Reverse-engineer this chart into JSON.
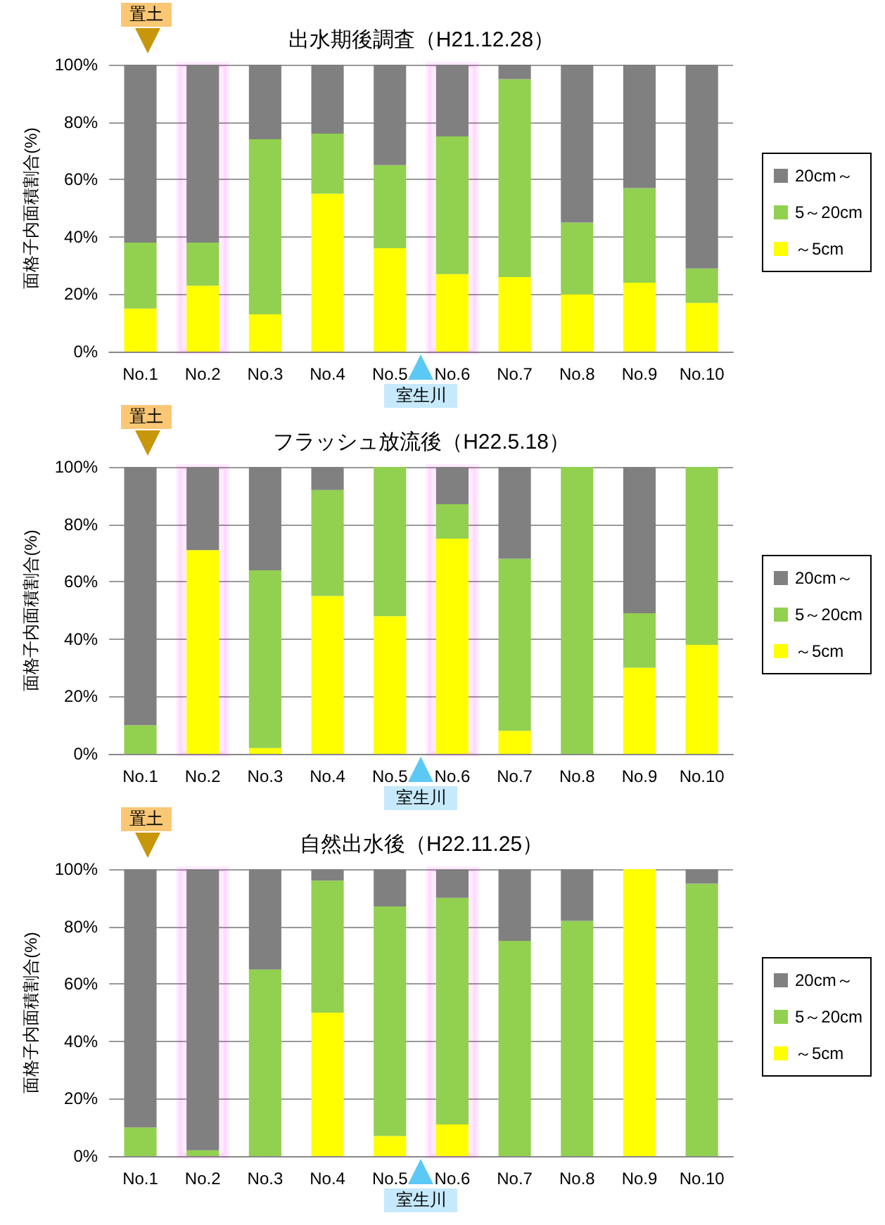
{
  "chart_data": [
    {
      "type": "bar",
      "title": "出水期後調査（H21.12.28）",
      "ylabel": "面格子内面積割合(%)",
      "categories": [
        "No.1",
        "No.2",
        "No.3",
        "No.4",
        "No.5",
        "No.6",
        "No.7",
        "No.8",
        "No.9",
        "No.10"
      ],
      "stacked": true,
      "series": [
        {
          "name": "～5cm",
          "color": "#ffff00",
          "values": [
            15,
            23,
            13,
            55,
            36,
            27,
            26,
            20,
            24,
            17
          ]
        },
        {
          "name": "5～20cm",
          "color": "#92d050",
          "values": [
            23,
            15,
            61,
            21,
            29,
            48,
            69,
            25,
            33,
            12
          ]
        },
        {
          "name": "20cm～",
          "color": "#808080",
          "values": [
            62,
            62,
            26,
            24,
            35,
            25,
            5,
            55,
            43,
            71
          ]
        }
      ],
      "ylim": [
        0,
        100
      ],
      "yticks": [
        {
          "value": 0,
          "label": "0%"
        },
        {
          "value": 20,
          "label": "20%"
        },
        {
          "value": 40,
          "label": "40%"
        },
        {
          "value": 60,
          "label": "60%"
        },
        {
          "value": 80,
          "label": "80%"
        },
        {
          "value": 100,
          "label": "100%"
        }
      ],
      "grid": "y",
      "legend": "right",
      "annotations": [
        "置土",
        "室生川"
      ],
      "bands": [
        {
          "axis": "x",
          "from": "No.2",
          "to": "No.2",
          "color": "#ff00ff"
        },
        {
          "axis": "x",
          "from": "No.6",
          "to": "No.6",
          "color": "#ff00ff"
        }
      ]
    },
    {
      "type": "bar",
      "title": "フラッシュ放流後（H22.5.18）",
      "ylabel": "面格子内面積割合(%)",
      "categories": [
        "No.1",
        "No.2",
        "No.3",
        "No.4",
        "No.5",
        "No.6",
        "No.7",
        "No.8",
        "No.9",
        "No.10"
      ],
      "stacked": true,
      "series": [
        {
          "name": "～5cm",
          "color": "#ffff00",
          "values": [
            0,
            71,
            2,
            55,
            48,
            75,
            8,
            0,
            30,
            38
          ]
        },
        {
          "name": "5～20cm",
          "color": "#92d050",
          "values": [
            10,
            0,
            62,
            37,
            52,
            12,
            60,
            100,
            19,
            62
          ]
        },
        {
          "name": "20cm～",
          "color": "#808080",
          "values": [
            90,
            29,
            36,
            8,
            0,
            13,
            32,
            0,
            51,
            0
          ]
        }
      ],
      "ylim": [
        0,
        100
      ],
      "yticks": [
        {
          "value": 0,
          "label": "0%"
        },
        {
          "value": 20,
          "label": "20%"
        },
        {
          "value": 40,
          "label": "40%"
        },
        {
          "value": 60,
          "label": "60%"
        },
        {
          "value": 80,
          "label": "80%"
        },
        {
          "value": 100,
          "label": "100%"
        }
      ],
      "grid": "y",
      "legend": "right",
      "annotations": [
        "置土",
        "室生川"
      ],
      "bands": [
        {
          "axis": "x",
          "from": "No.2",
          "to": "No.2",
          "color": "#ff00ff"
        },
        {
          "axis": "x",
          "from": "No.6",
          "to": "No.6",
          "color": "#ff00ff"
        }
      ]
    },
    {
      "type": "bar",
      "title": "自然出水後（H22.11.25）",
      "ylabel": "面格子内面積割合(%)",
      "categories": [
        "No.1",
        "No.2",
        "No.3",
        "No.4",
        "No.5",
        "No.6",
        "No.7",
        "No.8",
        "No.9",
        "No.10"
      ],
      "stacked": true,
      "series": [
        {
          "name": "～5cm",
          "color": "#ffff00",
          "values": [
            0,
            0,
            0,
            50,
            7,
            11,
            0,
            0,
            100,
            0
          ]
        },
        {
          "name": "5～20cm",
          "color": "#92d050",
          "values": [
            10,
            2,
            65,
            46,
            80,
            79,
            75,
            82,
            0,
            95
          ]
        },
        {
          "name": "20cm～",
          "color": "#808080",
          "values": [
            90,
            98,
            35,
            4,
            13,
            10,
            25,
            18,
            0,
            5
          ]
        }
      ],
      "ylim": [
        0,
        100
      ],
      "yticks": [
        {
          "value": 0,
          "label": "0%"
        },
        {
          "value": 20,
          "label": "20%"
        },
        {
          "value": 40,
          "label": "40%"
        },
        {
          "value": 60,
          "label": "60%"
        },
        {
          "value": 80,
          "label": "80%"
        },
        {
          "value": 100,
          "label": "100%"
        }
      ],
      "grid": "y",
      "legend": "right",
      "annotations": [
        "置土",
        "室生川"
      ],
      "bands": [
        {
          "axis": "x",
          "from": "No.2",
          "to": "No.2",
          "color": "#ff00ff"
        },
        {
          "axis": "x",
          "from": "No.6",
          "to": "No.6",
          "color": "#ff00ff"
        }
      ]
    }
  ]
}
